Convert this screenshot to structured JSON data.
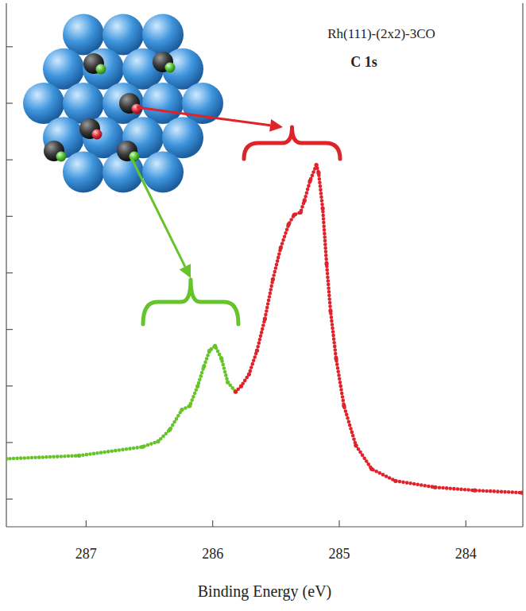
{
  "chart_data": {
    "type": "line",
    "title": "Rh(111)-(2x2)-3CO",
    "subtitle": "C 1s",
    "x_label": "Binding Energy (eV)",
    "xlim": [
      287.63,
      283.55
    ],
    "xticks": [
      287,
      286,
      285,
      284
    ],
    "ylim": [
      -0.49,
      8.77
    ],
    "yticks": [
      0,
      1,
      2,
      3,
      4,
      5,
      6,
      7,
      8
    ],
    "tick_labels": "x",
    "series": [
      {
        "color": "#66c42a",
        "marker": "circle",
        "line_style": "dotted",
        "x": [
          287.631,
          287.056,
          286.556,
          286.431,
          286.338,
          286.244,
          286.181,
          286.119,
          286.069,
          286.025,
          285.981,
          285.931,
          285.881,
          285.819
        ],
        "values": [
          0.712,
          0.768,
          0.922,
          1.02,
          1.229,
          1.578,
          1.648,
          1.997,
          2.346,
          2.626,
          2.709,
          2.486,
          2.067,
          1.899
        ]
      },
      {
        "color": "#e0232b",
        "marker": "circle",
        "line_style": "dotted",
        "x": [
          285.819,
          285.775,
          285.713,
          285.65,
          285.588,
          285.525,
          285.463,
          285.4,
          285.356,
          285.306,
          285.275,
          285.231,
          285.181,
          285.163,
          285.131,
          285.1,
          285.069,
          285.025,
          284.963,
          284.869,
          284.744,
          284.556,
          284.244,
          283.931,
          283.556
        ],
        "values": [
          1.899,
          1.997,
          2.207,
          2.626,
          3.184,
          3.883,
          4.441,
          4.86,
          5.028,
          5.07,
          5.279,
          5.628,
          5.908,
          5.768,
          5.14,
          4.162,
          3.324,
          2.486,
          1.648,
          0.95,
          0.531,
          0.321,
          0.209,
          0.154,
          0.112
        ]
      }
    ]
  }
}
